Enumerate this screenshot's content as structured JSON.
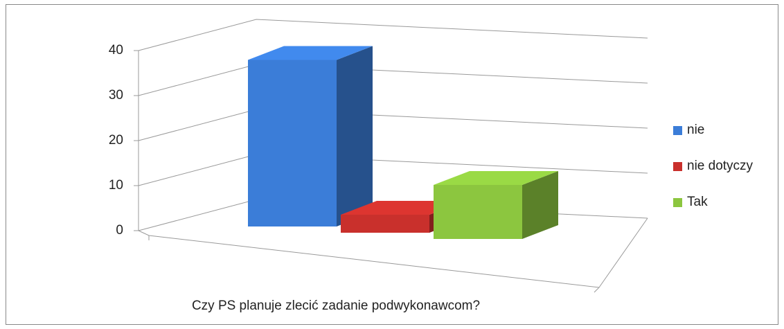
{
  "chart_data": {
    "type": "bar3d",
    "categories": [
      "Czy PS planuje zlecić zadanie podwykonawcom?"
    ],
    "series": [
      {
        "name": "nie",
        "color": "#3b7dd8",
        "values": [
          37
        ]
      },
      {
        "name": "nie dotyczy",
        "color": "#c9302c",
        "values": [
          4
        ]
      },
      {
        "name": "Tak",
        "color": "#8cc63f",
        "values": [
          12
        ]
      }
    ],
    "ylim": [
      0,
      40
    ],
    "yticks": [
      0,
      10,
      20,
      30,
      40
    ],
    "grid": true,
    "legend": "right"
  }
}
